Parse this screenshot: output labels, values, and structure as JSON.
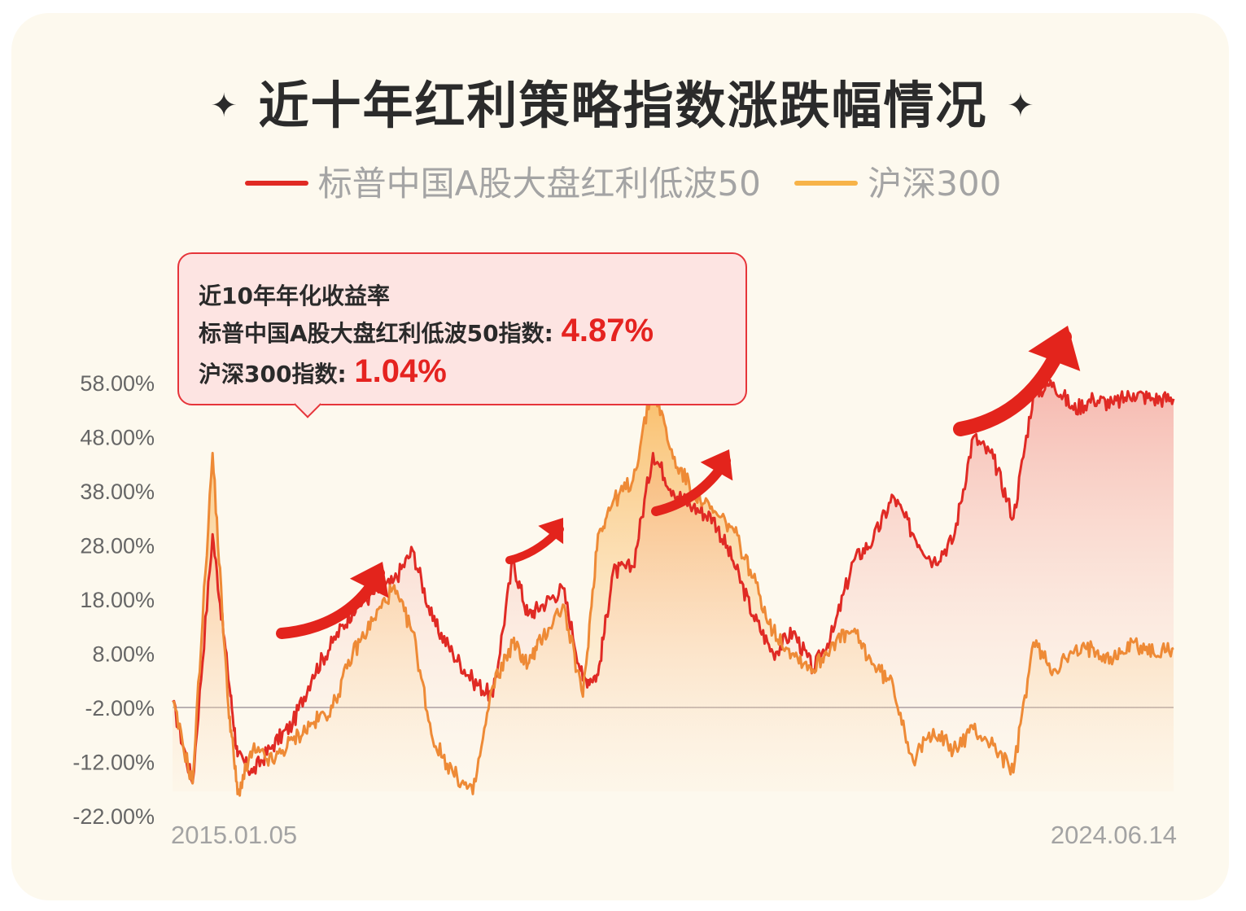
{
  "title": "近十年红利策略指数涨跌幅情况",
  "title_star": "✦",
  "legend": [
    {
      "label": "标普中国A股大盘红利低波50",
      "color": "#e02a24"
    },
    {
      "label": "沪深300",
      "color": "#f6b04a"
    }
  ],
  "callout": {
    "heading": "近10年年化收益率",
    "line1_label": "标普中国A股大盘红利低波50指数:",
    "line1_value": "4.87%",
    "line2_label": "沪深300指数:",
    "line2_value": "1.04%"
  },
  "chart_data": {
    "type": "area",
    "x_start_label": "2015.01.05",
    "x_end_label": "2024.06.14",
    "ylim": [
      -22,
      58
    ],
    "yticks": [
      "58.00%",
      "48.00%",
      "38.00%",
      "28.00%",
      "18.00%",
      "8.00%",
      "-2.00%",
      "-12.00%",
      "-22.00%"
    ],
    "baseline": -2,
    "x": [
      0,
      0.02,
      0.04,
      0.055,
      0.065,
      0.08,
      0.1,
      0.12,
      0.14,
      0.16,
      0.18,
      0.2,
      0.22,
      0.24,
      0.26,
      0.28,
      0.3,
      0.32,
      0.34,
      0.355,
      0.37,
      0.39,
      0.41,
      0.425,
      0.44,
      0.46,
      0.48,
      0.5,
      0.52,
      0.54,
      0.56,
      0.58,
      0.6,
      0.62,
      0.64,
      0.66,
      0.68,
      0.7,
      0.72,
      0.74,
      0.76,
      0.78,
      0.8,
      0.82,
      0.84,
      0.86,
      0.88,
      0.9,
      0.92,
      0.94,
      0.96,
      0.98,
      1.0
    ],
    "series": [
      {
        "name": "标普中国A股大盘红利低波50",
        "color": "#e02a24",
        "values": [
          -1,
          -16,
          30,
          5,
          -11,
          -14,
          -9,
          -5,
          4,
          10,
          16,
          19,
          21,
          27,
          14,
          8,
          3,
          0,
          25,
          15,
          17,
          20,
          3,
          4,
          23,
          24,
          45,
          38,
          35,
          33,
          25,
          15,
          8,
          12,
          5,
          12,
          25,
          29,
          37,
          30,
          25,
          29,
          48,
          44,
          33,
          56,
          58,
          53,
          55,
          54,
          56,
          55,
          55
        ]
      },
      {
        "name": "沪深300",
        "color": "#ee8a36",
        "values": [
          -1,
          -16,
          45,
          0,
          -18,
          -10,
          -12,
          -8,
          -5,
          -2,
          8,
          14,
          20,
          12,
          -8,
          -14,
          -18,
          2,
          10,
          6,
          11,
          17,
          0,
          30,
          36,
          40,
          58,
          44,
          38,
          34,
          31,
          22,
          12,
          8,
          5,
          10,
          12,
          6,
          2,
          -12,
          -6,
          -10,
          -6,
          -9,
          -14,
          10,
          5,
          8,
          9,
          7,
          10,
          8,
          9
        ]
      }
    ]
  },
  "arrows": [
    "arrow-1",
    "arrow-2",
    "arrow-3",
    "arrow-4"
  ]
}
